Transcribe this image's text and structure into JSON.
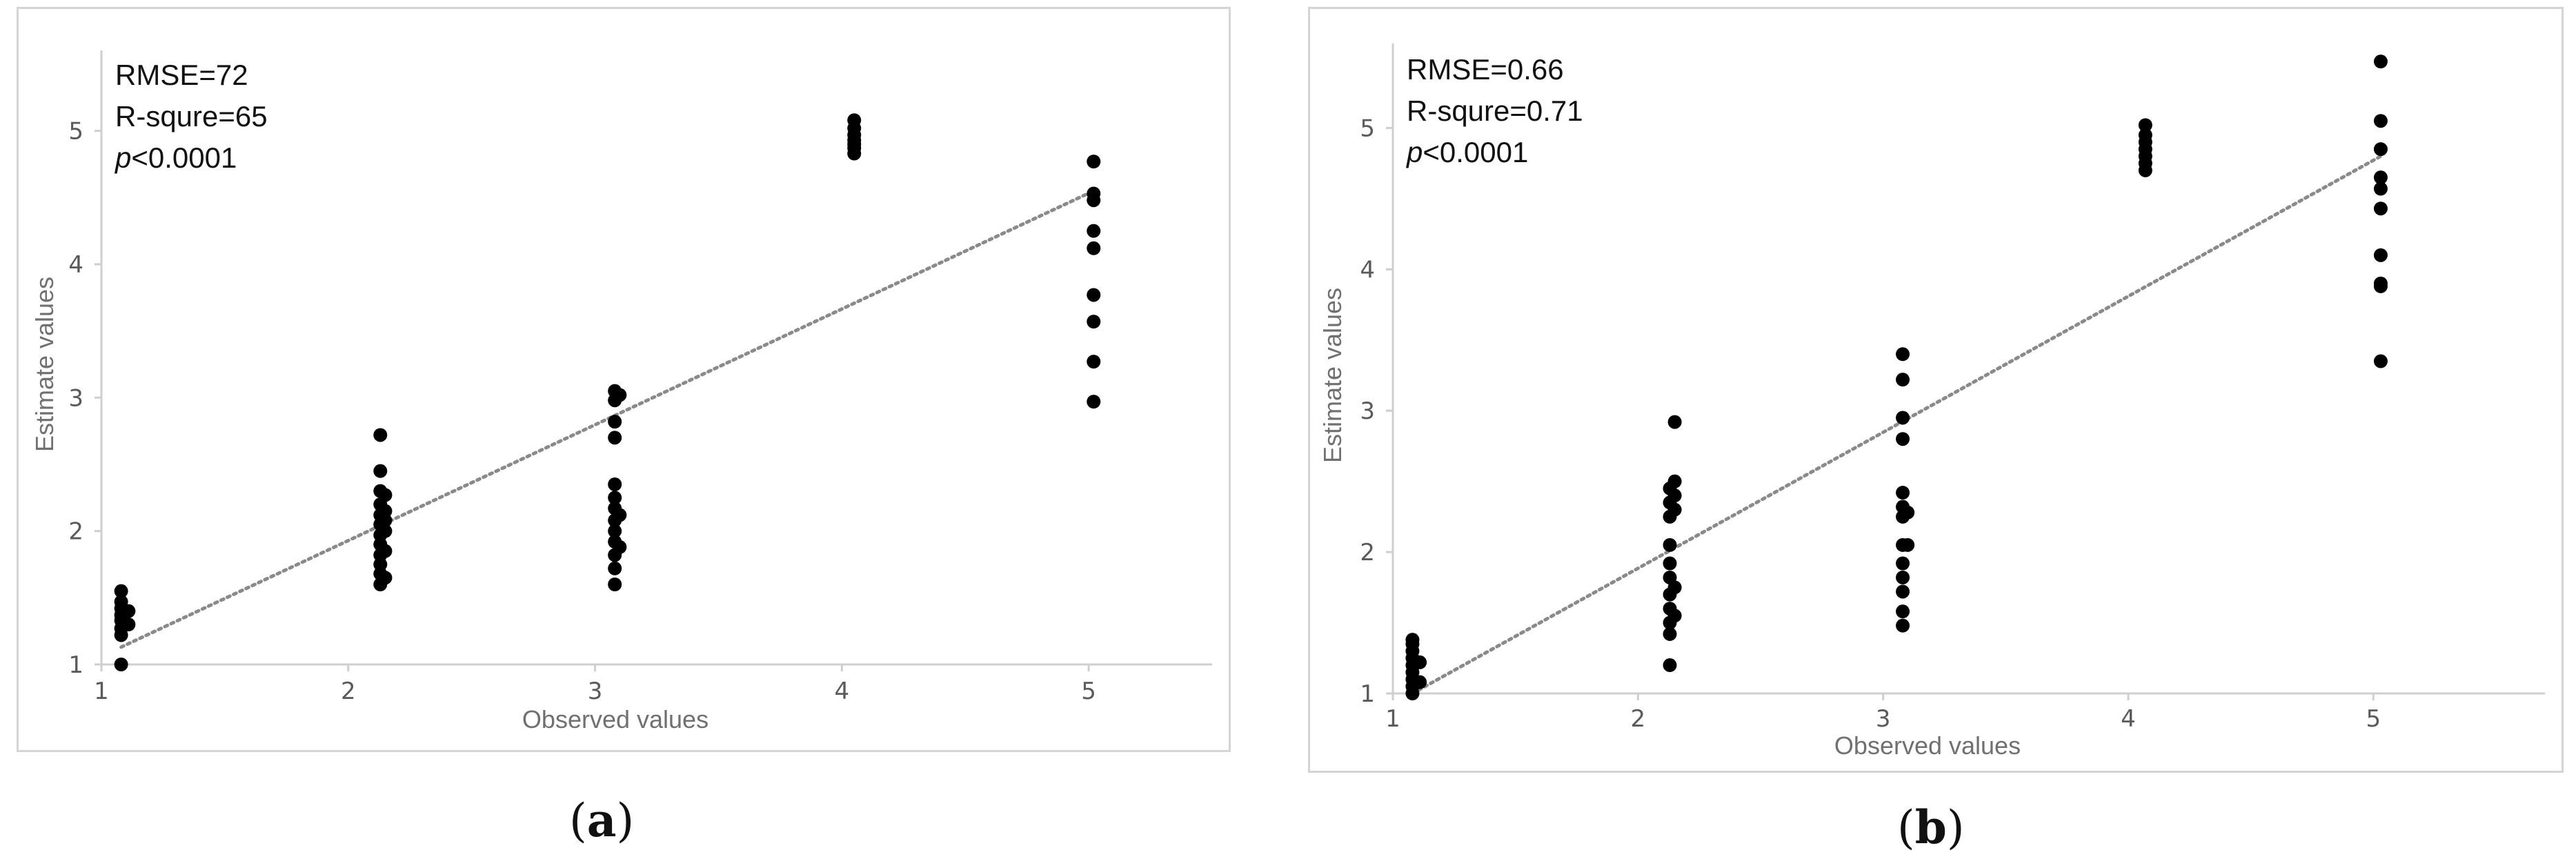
{
  "chart_data": [
    {
      "id": "a",
      "type": "scatter",
      "caption_letter": "a",
      "xlabel": "Observed values",
      "ylabel": "Estimate values",
      "xlim": [
        1,
        5.5
      ],
      "ylim": [
        1,
        5.5
      ],
      "x_ticks": [
        "1",
        "2",
        "3",
        "4",
        "5"
      ],
      "y_ticks": [
        "1",
        "2",
        "3",
        "4",
        "5"
      ],
      "annotations": [
        "RMSE=72",
        "R-squre=65",
        "<0.0001"
      ],
      "p_label": "p",
      "trendline": {
        "style": "dotted",
        "color": "#8a8a8a",
        "points": [
          [
            1.08,
            1.13
          ],
          [
            5.02,
            4.55
          ]
        ]
      },
      "points": [
        [
          1.08,
          1.0
        ],
        [
          1.08,
          1.22
        ],
        [
          1.08,
          1.27
        ],
        [
          1.08,
          1.33
        ],
        [
          1.08,
          1.37
        ],
        [
          1.08,
          1.42
        ],
        [
          1.08,
          1.47
        ],
        [
          1.08,
          1.55
        ],
        [
          1.11,
          1.3
        ],
        [
          1.11,
          1.4
        ],
        [
          2.13,
          1.6
        ],
        [
          2.13,
          1.68
        ],
        [
          2.13,
          1.75
        ],
        [
          2.13,
          1.82
        ],
        [
          2.13,
          1.9
        ],
        [
          2.13,
          1.97
        ],
        [
          2.13,
          2.05
        ],
        [
          2.13,
          2.12
        ],
        [
          2.13,
          2.2
        ],
        [
          2.13,
          2.3
        ],
        [
          2.13,
          2.45
        ],
        [
          2.13,
          2.72
        ],
        [
          2.15,
          1.65
        ],
        [
          2.15,
          1.85
        ],
        [
          2.15,
          2.0
        ],
        [
          2.15,
          2.08
        ],
        [
          2.15,
          2.15
        ],
        [
          2.15,
          2.27
        ],
        [
          3.08,
          1.6
        ],
        [
          3.08,
          1.72
        ],
        [
          3.08,
          1.82
        ],
        [
          3.08,
          1.92
        ],
        [
          3.08,
          2.0
        ],
        [
          3.08,
          2.08
        ],
        [
          3.08,
          2.17
        ],
        [
          3.08,
          2.25
        ],
        [
          3.08,
          2.35
        ],
        [
          3.08,
          2.7
        ],
        [
          3.08,
          2.82
        ],
        [
          3.08,
          2.98
        ],
        [
          3.08,
          3.05
        ],
        [
          3.1,
          1.88
        ],
        [
          3.1,
          2.12
        ],
        [
          3.1,
          3.02
        ],
        [
          4.05,
          4.83
        ],
        [
          4.05,
          4.87
        ],
        [
          4.05,
          4.9
        ],
        [
          4.05,
          4.93
        ],
        [
          4.05,
          4.97
        ],
        [
          4.05,
          5.02
        ],
        [
          4.05,
          5.08
        ],
        [
          5.02,
          2.97
        ],
        [
          5.02,
          3.27
        ],
        [
          5.02,
          3.57
        ],
        [
          5.02,
          3.77
        ],
        [
          5.02,
          4.12
        ],
        [
          5.02,
          4.25
        ],
        [
          5.02,
          4.48
        ],
        [
          5.02,
          4.53
        ],
        [
          5.02,
          4.77
        ]
      ]
    },
    {
      "id": "b",
      "type": "scatter",
      "caption_letter": "b",
      "xlabel": "Observed values",
      "ylabel": "Estimate values",
      "xlim": [
        1,
        5.7
      ],
      "ylim": [
        1,
        5.5
      ],
      "x_ticks": [
        "1",
        "2",
        "3",
        "4",
        "5"
      ],
      "y_ticks": [
        "1",
        "2",
        "3",
        "4",
        "5"
      ],
      "annotations": [
        "RMSE=0.66",
        "R-squre=0.71",
        "<0.0001"
      ],
      "p_label": "p",
      "trendline": {
        "style": "dotted",
        "color": "#8a8a8a",
        "points": [
          [
            1.08,
            1.0
          ],
          [
            5.03,
            4.8
          ]
        ]
      },
      "points": [
        [
          1.08,
          1.0
        ],
        [
          1.08,
          1.05
        ],
        [
          1.08,
          1.1
        ],
        [
          1.08,
          1.15
        ],
        [
          1.08,
          1.2
        ],
        [
          1.08,
          1.25
        ],
        [
          1.08,
          1.3
        ],
        [
          1.08,
          1.35
        ],
        [
          1.08,
          1.38
        ],
        [
          1.11,
          1.08
        ],
        [
          1.11,
          1.22
        ],
        [
          2.13,
          1.2
        ],
        [
          2.13,
          1.42
        ],
        [
          2.13,
          1.5
        ],
        [
          2.13,
          1.6
        ],
        [
          2.13,
          1.7
        ],
        [
          2.13,
          1.82
        ],
        [
          2.13,
          1.92
        ],
        [
          2.13,
          2.05
        ],
        [
          2.13,
          2.25
        ],
        [
          2.13,
          2.35
        ],
        [
          2.13,
          2.45
        ],
        [
          2.15,
          1.55
        ],
        [
          2.15,
          1.75
        ],
        [
          2.15,
          2.3
        ],
        [
          2.15,
          2.4
        ],
        [
          2.15,
          2.5
        ],
        [
          2.15,
          2.92
        ],
        [
          3.08,
          1.48
        ],
        [
          3.08,
          1.58
        ],
        [
          3.08,
          1.72
        ],
        [
          3.08,
          1.82
        ],
        [
          3.08,
          1.92
        ],
        [
          3.08,
          2.05
        ],
        [
          3.08,
          2.25
        ],
        [
          3.08,
          2.32
        ],
        [
          3.08,
          2.42
        ],
        [
          3.08,
          2.8
        ],
        [
          3.08,
          2.95
        ],
        [
          3.08,
          3.22
        ],
        [
          3.08,
          3.4
        ],
        [
          3.1,
          2.28
        ],
        [
          3.1,
          2.05
        ],
        [
          4.07,
          4.7
        ],
        [
          4.07,
          4.75
        ],
        [
          4.07,
          4.8
        ],
        [
          4.07,
          4.85
        ],
        [
          4.07,
          4.9
        ],
        [
          4.07,
          4.95
        ],
        [
          4.07,
          5.02
        ],
        [
          5.03,
          3.35
        ],
        [
          5.03,
          3.88
        ],
        [
          5.03,
          3.9
        ],
        [
          5.03,
          4.1
        ],
        [
          5.03,
          4.43
        ],
        [
          5.03,
          4.57
        ],
        [
          5.03,
          4.65
        ],
        [
          5.03,
          4.85
        ],
        [
          5.03,
          5.05
        ],
        [
          5.03,
          5.47
        ]
      ]
    }
  ]
}
